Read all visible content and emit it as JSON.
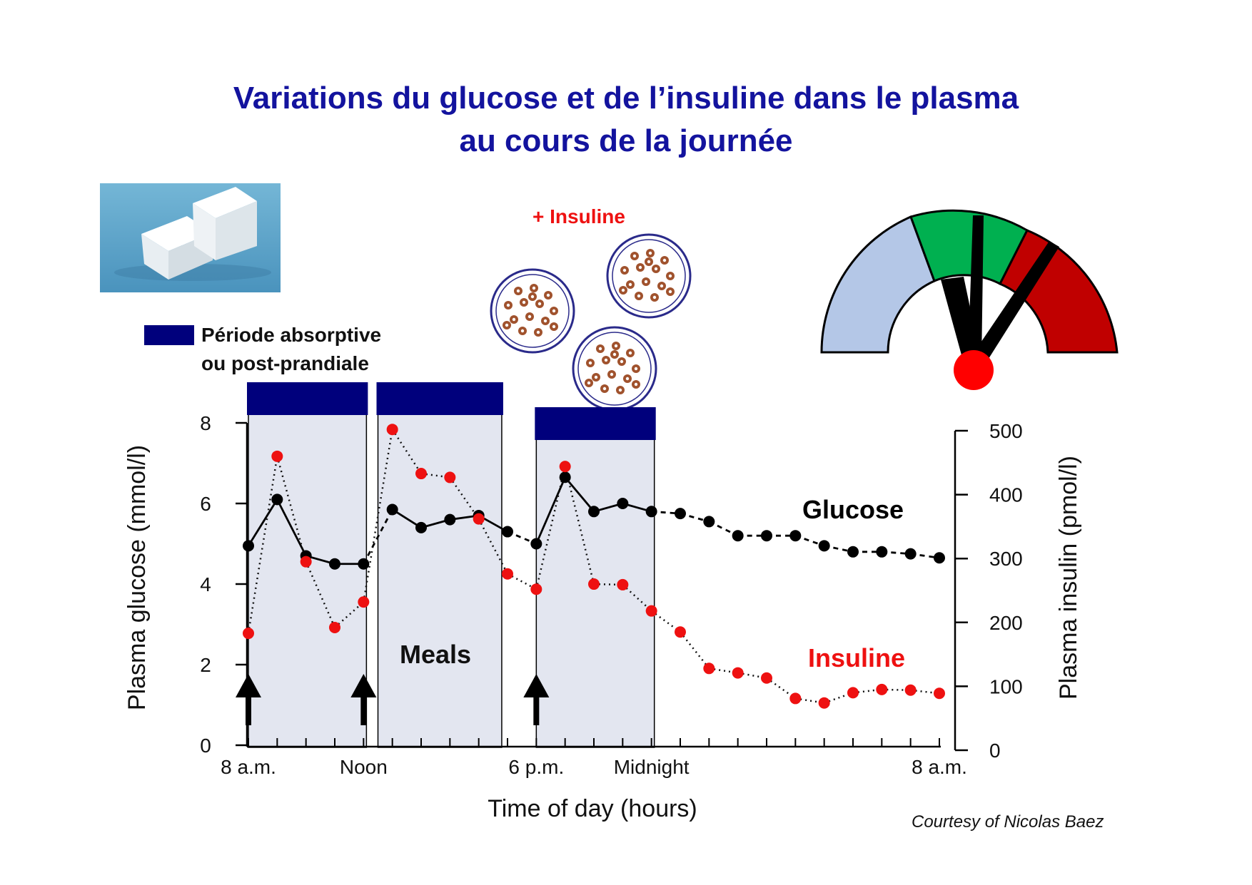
{
  "title": {
    "line1": "Variations du glucose et de l’insuline dans le plasma",
    "line2": "au cours de la journée"
  },
  "legend": {
    "label_line1": "Période absorptive",
    "label_line2": "ou post-prandiale",
    "color": "#00007c"
  },
  "plus_insuline": "+ Insuline",
  "credit": "Courtesy of Nicolas Baez",
  "colors": {
    "glucose": "#000000",
    "insulin": "#ee1111",
    "meal_shade": "#e3e6f0",
    "gauge_low": "#b4c7e7",
    "gauge_mid": "#00b050",
    "gauge_high": "#c00000",
    "gauge_center": "#ff0000",
    "plate_dot": "#a0522d"
  },
  "icons": {
    "sugar": "sugar-cubes-photo",
    "gauge": "glucose-gauge-icon",
    "plates": "cereal-bowl-icon"
  },
  "chart_data": {
    "type": "line",
    "xlabel": "Time of day (hours)",
    "ylabel_left": "Plasma glucose (mmol/l)",
    "ylabel_right": "Plasma insulin (pmol/l)",
    "x_tick_labels": [
      "8 a.m.",
      "Noon",
      "6 p.m.",
      "Midnight",
      "8 a.m."
    ],
    "x_tick_hours": [
      0,
      4,
      10,
      14,
      24
    ],
    "xlim": [
      0,
      24
    ],
    "ylim_left": [
      0,
      8
    ],
    "ylim_right": [
      0,
      500
    ],
    "yticks_left": [
      0,
      2,
      4,
      6,
      8
    ],
    "yticks_right": [
      0,
      100,
      200,
      300,
      400,
      500
    ],
    "meals_label": "Meals",
    "meal_periods": [
      [
        0,
        4.1
      ],
      [
        4.5,
        8.8
      ],
      [
        10,
        14.1
      ]
    ],
    "meal_arrows_hours": [
      0,
      4.0,
      10.0
    ],
    "series": [
      {
        "name": "Glucose",
        "axis": "left",
        "x": [
          0,
          1,
          2,
          3,
          4,
          5,
          6,
          7,
          8,
          9,
          10,
          11,
          12,
          13,
          14,
          15,
          16,
          17,
          18,
          19,
          20,
          21,
          22,
          23,
          24
        ],
        "values": [
          4.95,
          6.1,
          4.7,
          4.5,
          4.5,
          5.85,
          5.4,
          5.6,
          5.7,
          5.3,
          5.0,
          6.65,
          5.8,
          6.0,
          5.8,
          5.75,
          5.55,
          5.2,
          5.2,
          5.2,
          4.95,
          4.8,
          4.8,
          4.75,
          4.65
        ]
      },
      {
        "name": "Insuline",
        "axis": "right",
        "x": [
          0,
          1,
          2,
          3,
          4,
          5,
          6,
          7,
          8,
          9,
          10,
          11,
          12,
          13,
          14,
          15,
          16,
          17,
          18,
          19,
          20,
          21,
          22,
          23,
          24
        ],
        "values": [
          183,
          460,
          295,
          192,
          232,
          502,
          433,
          427,
          362,
          276,
          252,
          444,
          260,
          259,
          218,
          185,
          128,
          121,
          113,
          81,
          74,
          90,
          95,
          94,
          89
        ]
      }
    ]
  }
}
